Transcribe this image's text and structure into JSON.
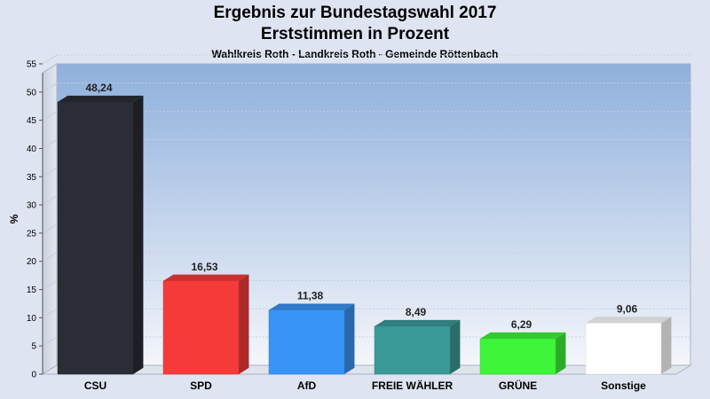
{
  "title": "Ergebnis zur Bundestagswahl 2017",
  "subtitle": "Erststimmen in Prozent",
  "caption": "Wahlkreis Roth - Landkreis Roth - Gemeinde Röttenbach",
  "chart_data": {
    "type": "bar",
    "categories": [
      "CSU",
      "SPD",
      "AfD",
      "FREIE WÄHLER",
      "GRÜNE",
      "Sonstige"
    ],
    "values": [
      48.24,
      16.53,
      11.38,
      8.49,
      6.29,
      9.06
    ],
    "value_labels": [
      "48,24",
      "16,53",
      "11,38",
      "8,49",
      "6,29",
      "9,06"
    ],
    "colors": [
      "#2a2d35",
      "#f53a3a",
      "#3a94f5",
      "#3a9a98",
      "#3ef53a",
      "#ffffff"
    ],
    "ylabel": "%",
    "ylim": [
      0,
      55
    ],
    "yticks": [
      0,
      5,
      10,
      15,
      20,
      25,
      30,
      35,
      40,
      45,
      50,
      55
    ],
    "grid": true,
    "legend": "none"
  }
}
